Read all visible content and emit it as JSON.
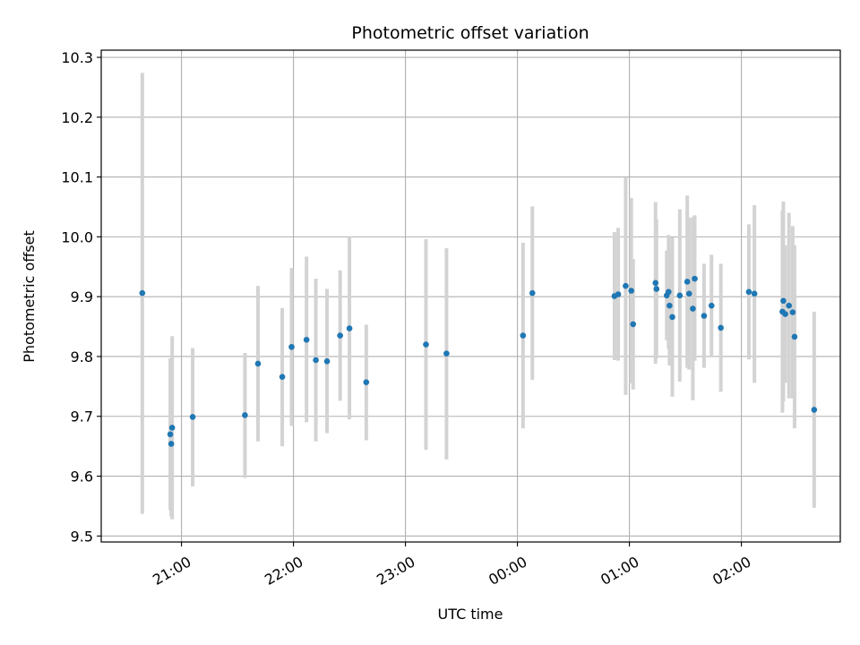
{
  "chart_data": {
    "type": "scatter",
    "title": "Photometric offset variation",
    "xlabel": "UTC time",
    "ylabel": "Photometric offset",
    "x_unit": "minutes relative to 00:00 UTC",
    "xlim": [
      -223,
      173
    ],
    "ylim": [
      9.49,
      10.312
    ],
    "grid": true,
    "x_ticks": [
      {
        "value": -180,
        "label": "21:00"
      },
      {
        "value": -120,
        "label": "22:00"
      },
      {
        "value": -60,
        "label": "23:00"
      },
      {
        "value": 0,
        "label": "00:00"
      },
      {
        "value": 60,
        "label": "01:00"
      },
      {
        "value": 120,
        "label": "02:00"
      }
    ],
    "y_ticks": [
      9.5,
      9.6,
      9.7,
      9.8,
      9.9,
      10.0,
      10.1,
      10.2,
      10.3
    ],
    "y_tick_labels": [
      "9.5",
      "9.6",
      "9.7",
      "9.8",
      "9.9",
      "10.0",
      "10.1",
      "10.2",
      "10.3"
    ],
    "marker_color": "#1f77b4",
    "errorbar_color": "#d3d3d3",
    "points": [
      {
        "x": -201,
        "y": 9.906,
        "lo": 9.537,
        "hi": 10.274
      },
      {
        "x": -186,
        "y": 9.67,
        "lo": 9.543,
        "hi": 9.797
      },
      {
        "x": -185.5,
        "y": 9.654,
        "lo": 9.533,
        "hi": 9.775
      },
      {
        "x": -185,
        "y": 9.681,
        "lo": 9.528,
        "hi": 9.834
      },
      {
        "x": -174,
        "y": 9.699,
        "lo": 9.583,
        "hi": 9.814
      },
      {
        "x": -146,
        "y": 9.702,
        "lo": 9.597,
        "hi": 9.806
      },
      {
        "x": -139,
        "y": 9.788,
        "lo": 9.658,
        "hi": 9.918
      },
      {
        "x": -126,
        "y": 9.766,
        "lo": 9.65,
        "hi": 9.881
      },
      {
        "x": -121,
        "y": 9.816,
        "lo": 9.684,
        "hi": 9.948
      },
      {
        "x": -113,
        "y": 9.828,
        "lo": 9.69,
        "hi": 9.967
      },
      {
        "x": -108,
        "y": 9.794,
        "lo": 9.658,
        "hi": 9.93
      },
      {
        "x": -102,
        "y": 9.792,
        "lo": 9.672,
        "hi": 9.913
      },
      {
        "x": -95,
        "y": 9.835,
        "lo": 9.726,
        "hi": 9.944
      },
      {
        "x": -90,
        "y": 9.847,
        "lo": 9.695,
        "hi": 10.0
      },
      {
        "x": -81,
        "y": 9.757,
        "lo": 9.66,
        "hi": 9.853
      },
      {
        "x": -49,
        "y": 9.82,
        "lo": 9.644,
        "hi": 9.996
      },
      {
        "x": -38,
        "y": 9.805,
        "lo": 9.628,
        "hi": 9.981
      },
      {
        "x": 3,
        "y": 9.835,
        "lo": 9.68,
        "hi": 9.99
      },
      {
        "x": 8,
        "y": 9.906,
        "lo": 9.761,
        "hi": 10.051
      },
      {
        "x": 52,
        "y": 9.901,
        "lo": 9.794,
        "hi": 10.008
      },
      {
        "x": 54,
        "y": 9.904,
        "lo": 9.793,
        "hi": 10.015
      },
      {
        "x": 58,
        "y": 9.918,
        "lo": 9.736,
        "hi": 10.099
      },
      {
        "x": 61,
        "y": 9.91,
        "lo": 9.755,
        "hi": 10.065
      },
      {
        "x": 62,
        "y": 9.854,
        "lo": 9.745,
        "hi": 9.963
      },
      {
        "x": 74,
        "y": 9.923,
        "lo": 9.788,
        "hi": 10.058
      },
      {
        "x": 74.5,
        "y": 9.913,
        "lo": 9.797,
        "hi": 10.029
      },
      {
        "x": 80,
        "y": 9.902,
        "lo": 9.827,
        "hi": 9.977
      },
      {
        "x": 81,
        "y": 9.908,
        "lo": 9.813,
        "hi": 10.003
      },
      {
        "x": 81.5,
        "y": 9.885,
        "lo": 9.785,
        "hi": 9.985
      },
      {
        "x": 83,
        "y": 9.866,
        "lo": 9.733,
        "hi": 9.999
      },
      {
        "x": 87,
        "y": 9.902,
        "lo": 9.758,
        "hi": 10.046
      },
      {
        "x": 91,
        "y": 9.925,
        "lo": 9.781,
        "hi": 10.069
      },
      {
        "x": 92,
        "y": 9.905,
        "lo": 9.778,
        "hi": 10.032
      },
      {
        "x": 94,
        "y": 9.88,
        "lo": 9.727,
        "hi": 10.033
      },
      {
        "x": 95,
        "y": 9.93,
        "lo": 9.793,
        "hi": 10.036
      },
      {
        "x": 100,
        "y": 9.868,
        "lo": 9.781,
        "hi": 9.955
      },
      {
        "x": 104,
        "y": 9.885,
        "lo": 9.8,
        "hi": 9.97
      },
      {
        "x": 109,
        "y": 9.848,
        "lo": 9.741,
        "hi": 9.955
      },
      {
        "x": 124,
        "y": 9.908,
        "lo": 9.795,
        "hi": 10.021
      },
      {
        "x": 127,
        "y": 9.905,
        "lo": 9.756,
        "hi": 10.053
      },
      {
        "x": 142,
        "y": 9.875,
        "lo": 9.706,
        "hi": 10.044
      },
      {
        "x": 142.5,
        "y": 9.893,
        "lo": 9.725,
        "hi": 10.059
      },
      {
        "x": 143.5,
        "y": 9.871,
        "lo": 9.756,
        "hi": 9.986
      },
      {
        "x": 145.5,
        "y": 9.885,
        "lo": 9.73,
        "hi": 10.04
      },
      {
        "x": 147.5,
        "y": 9.874,
        "lo": 9.73,
        "hi": 10.018
      },
      {
        "x": 148.5,
        "y": 9.833,
        "lo": 9.68,
        "hi": 9.986
      },
      {
        "x": 159,
        "y": 9.711,
        "lo": 9.547,
        "hi": 9.875
      }
    ]
  }
}
